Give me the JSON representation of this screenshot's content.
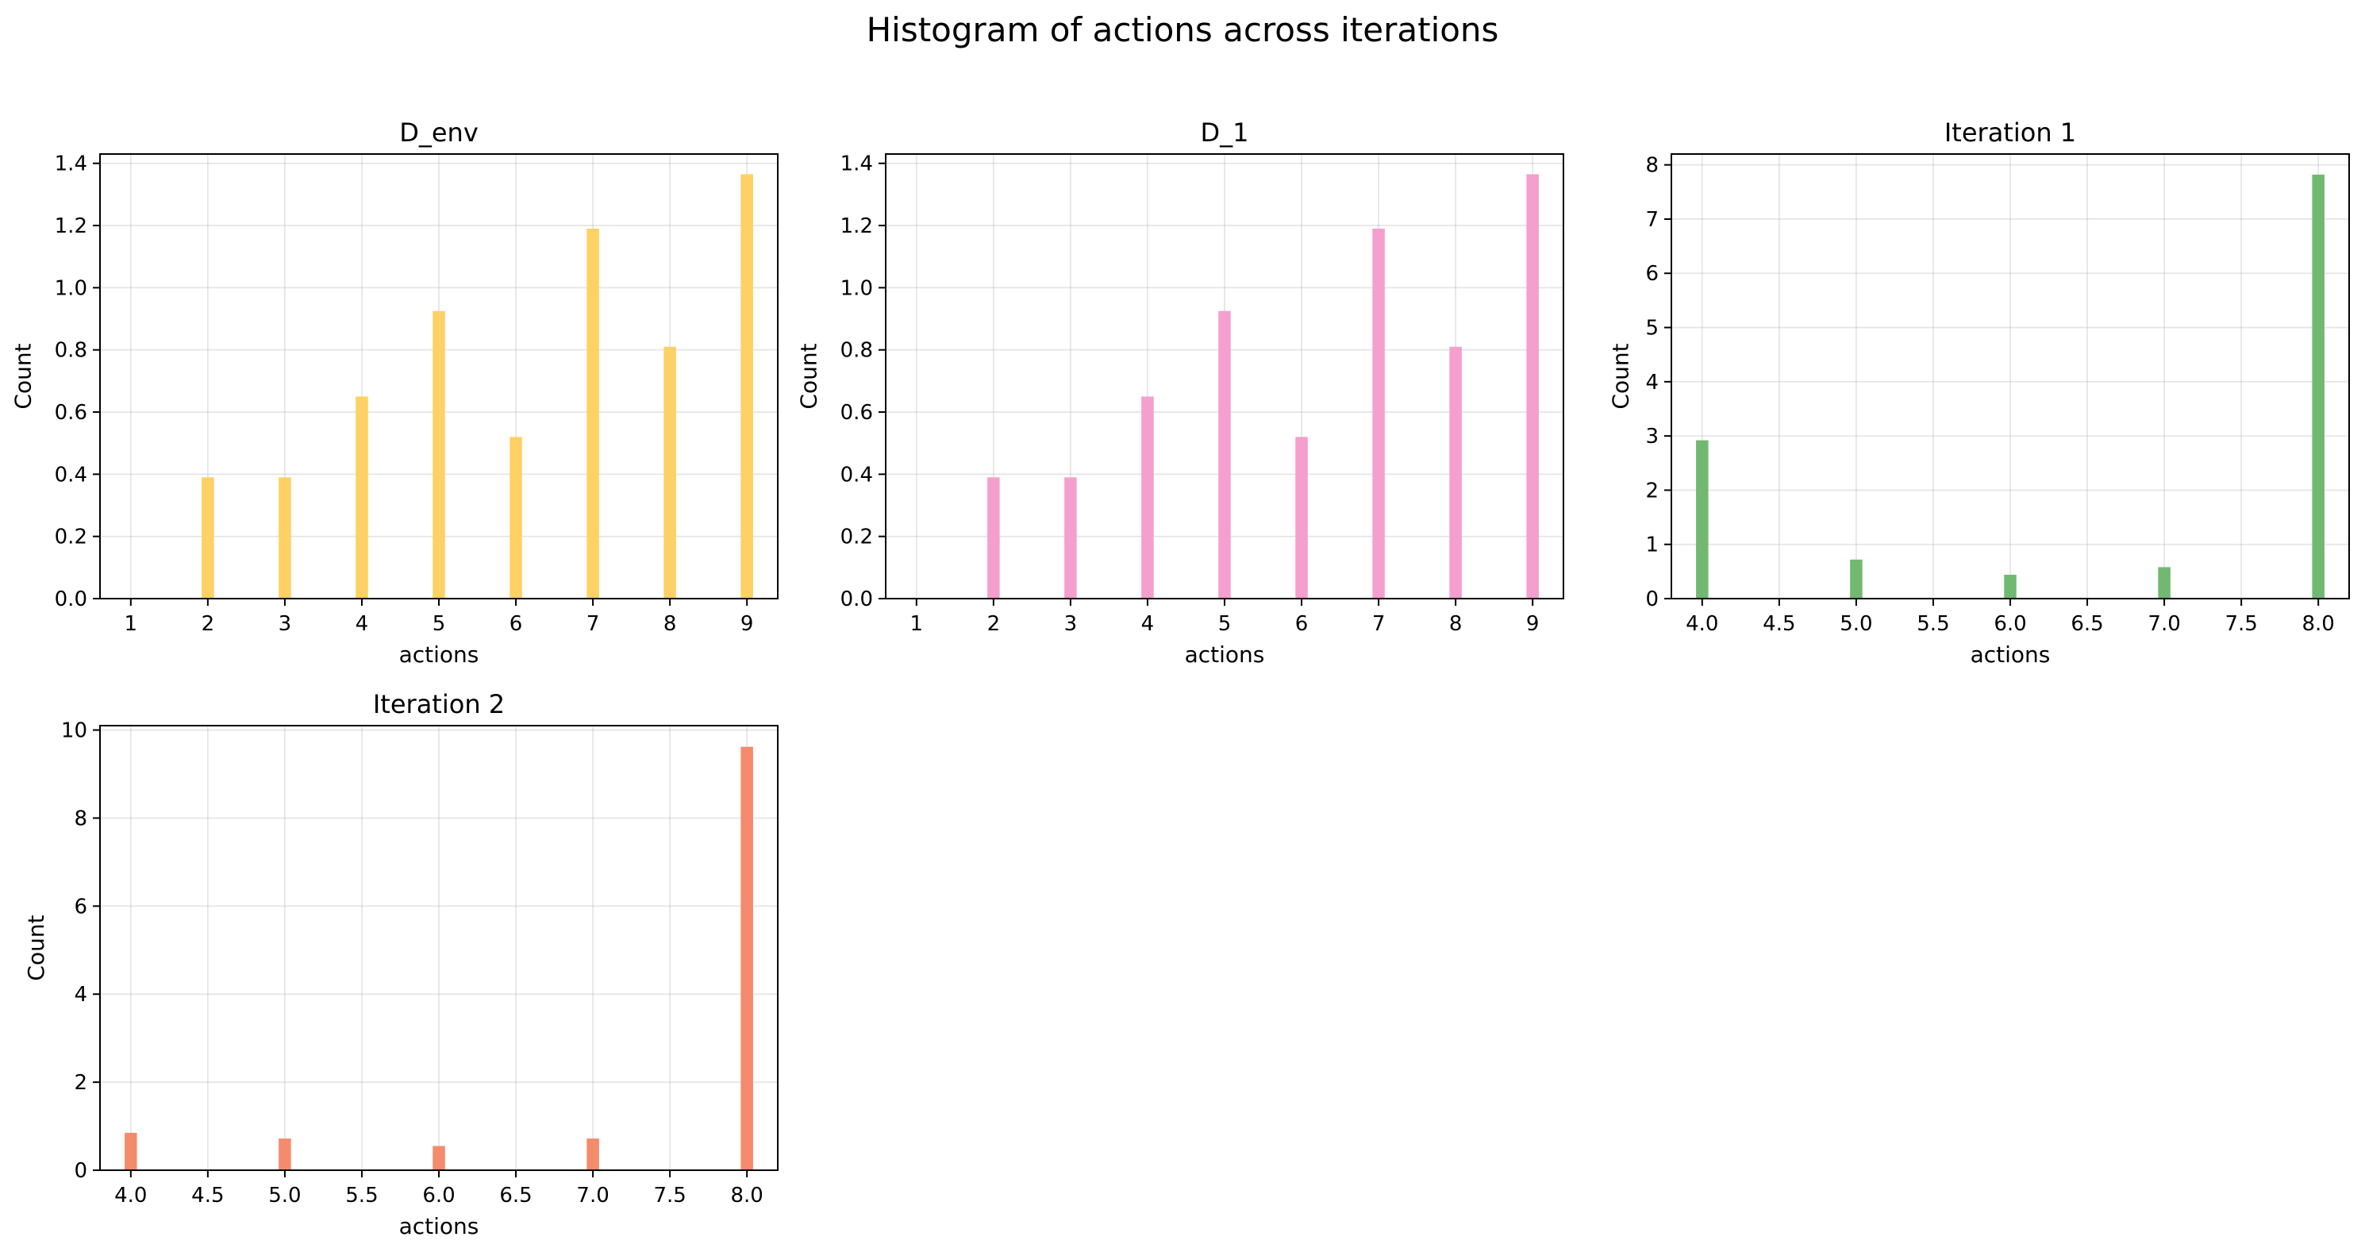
{
  "figure": {
    "suptitle": "Histogram of actions across iterations"
  },
  "chart_data": [
    {
      "type": "bar",
      "title": "D_env",
      "xlabel": "actions",
      "ylabel": "Count",
      "color": "#fdd163",
      "xlim": [
        0.6,
        9.4
      ],
      "ylim": [
        0,
        1.43
      ],
      "xticks": [
        1,
        2,
        3,
        4,
        5,
        6,
        7,
        8,
        9
      ],
      "xtick_labels": [
        "1",
        "2",
        "3",
        "4",
        "5",
        "6",
        "7",
        "8",
        "9"
      ],
      "yticks": [
        0,
        0.2,
        0.4,
        0.6,
        0.8,
        1.0,
        1.2,
        1.4
      ],
      "ytick_labels": [
        "0.0",
        "0.2",
        "0.4",
        "0.6",
        "0.8",
        "1.0",
        "1.2",
        "1.4"
      ],
      "bar_width": 0.16,
      "x": [
        2,
        3,
        4,
        5,
        6,
        7,
        8,
        9
      ],
      "values": [
        0.39,
        0.39,
        0.65,
        0.925,
        0.52,
        1.19,
        0.81,
        1.365
      ],
      "grid": true
    },
    {
      "type": "bar",
      "title": "D_1",
      "xlabel": "actions",
      "ylabel": "Count",
      "color": "#f49fcd",
      "xlim": [
        0.6,
        9.4
      ],
      "ylim": [
        0,
        1.43
      ],
      "xticks": [
        1,
        2,
        3,
        4,
        5,
        6,
        7,
        8,
        9
      ],
      "xtick_labels": [
        "1",
        "2",
        "3",
        "4",
        "5",
        "6",
        "7",
        "8",
        "9"
      ],
      "yticks": [
        0,
        0.2,
        0.4,
        0.6,
        0.8,
        1.0,
        1.2,
        1.4
      ],
      "ytick_labels": [
        "0.0",
        "0.2",
        "0.4",
        "0.6",
        "0.8",
        "1.0",
        "1.2",
        "1.4"
      ],
      "bar_width": 0.16,
      "x": [
        2,
        3,
        4,
        5,
        6,
        7,
        8,
        9
      ],
      "values": [
        0.39,
        0.39,
        0.65,
        0.925,
        0.52,
        1.19,
        0.81,
        1.365
      ],
      "grid": true
    },
    {
      "type": "bar",
      "title": "Iteration 1",
      "xlabel": "actions",
      "ylabel": "Count",
      "color": "#71b971",
      "xlim": [
        3.8,
        8.2
      ],
      "ylim": [
        0,
        8.2
      ],
      "xticks": [
        4.0,
        4.5,
        5.0,
        5.5,
        6.0,
        6.5,
        7.0,
        7.5,
        8.0
      ],
      "xtick_labels": [
        "4.0",
        "4.5",
        "5.0",
        "5.5",
        "6.0",
        "6.5",
        "7.0",
        "7.5",
        "8.0"
      ],
      "yticks": [
        0,
        1,
        2,
        3,
        4,
        5,
        6,
        7,
        8
      ],
      "ytick_labels": [
        "0",
        "1",
        "2",
        "3",
        "4",
        "5",
        "6",
        "7",
        "8"
      ],
      "bar_width": 0.08,
      "x": [
        4,
        5,
        6,
        7,
        8
      ],
      "values": [
        2.92,
        0.72,
        0.44,
        0.58,
        7.82
      ],
      "grid": true
    },
    {
      "type": "bar",
      "title": "Iteration 2",
      "xlabel": "actions",
      "ylabel": "Count",
      "color": "#f58b6d",
      "xlim": [
        3.8,
        8.2
      ],
      "ylim": [
        0,
        10.1
      ],
      "xticks": [
        4.0,
        4.5,
        5.0,
        5.5,
        6.0,
        6.5,
        7.0,
        7.5,
        8.0
      ],
      "xtick_labels": [
        "4.0",
        "4.5",
        "5.0",
        "5.5",
        "6.0",
        "6.5",
        "7.0",
        "7.5",
        "8.0"
      ],
      "yticks": [
        0,
        2,
        4,
        6,
        8,
        10
      ],
      "ytick_labels": [
        "0",
        "2",
        "4",
        "6",
        "8",
        "10"
      ],
      "bar_width": 0.08,
      "x": [
        4,
        5,
        6,
        7,
        8
      ],
      "values": [
        0.85,
        0.72,
        0.55,
        0.72,
        9.62
      ],
      "grid": true
    }
  ]
}
